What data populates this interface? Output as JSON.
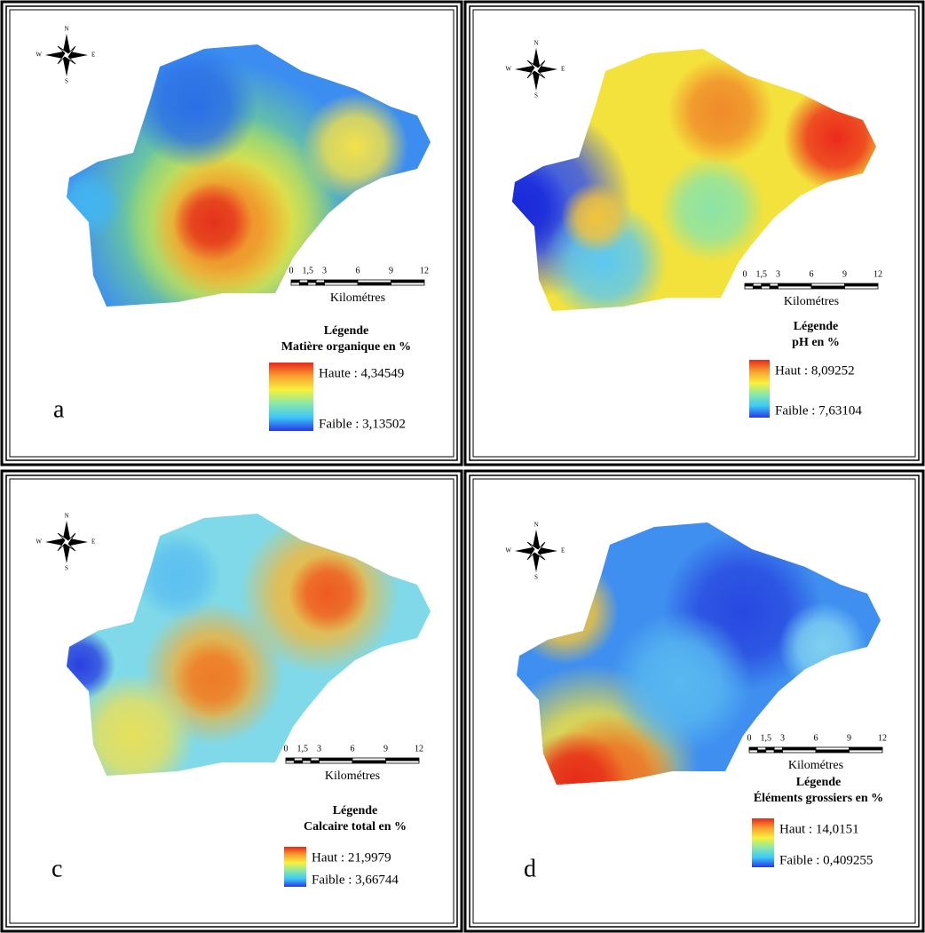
{
  "panels": [
    {
      "letter": "a",
      "legend_title": "Légende",
      "legend_subtitle": "Matière organique en %",
      "high": "Haute : 4,34549",
      "low": "Faible : 3,13502"
    },
    {
      "legend_title": "Légende",
      "legend_subtitle": "pH en %",
      "high": "Haut : 8,09252",
      "low": "Faible : 7,63104"
    },
    {
      "letter": "c",
      "legend_title": "Légende",
      "legend_subtitle": "Calcaire total en %",
      "high": "Haut : 21,9979",
      "low": "Faible : 3,66744"
    },
    {
      "letter": "d",
      "legend_title": "Légende",
      "legend_subtitle": "Éléments grossiers en %",
      "high": "Haut : 14,0151",
      "low": "Faible : 0,409255"
    }
  ],
  "scale": {
    "ticks": [
      "0",
      "1,5",
      "3",
      "6",
      "9",
      "12"
    ],
    "unit": "Kilométres"
  },
  "compass": {
    "n": "N",
    "s": "S",
    "e": "E",
    "w": "W"
  }
}
